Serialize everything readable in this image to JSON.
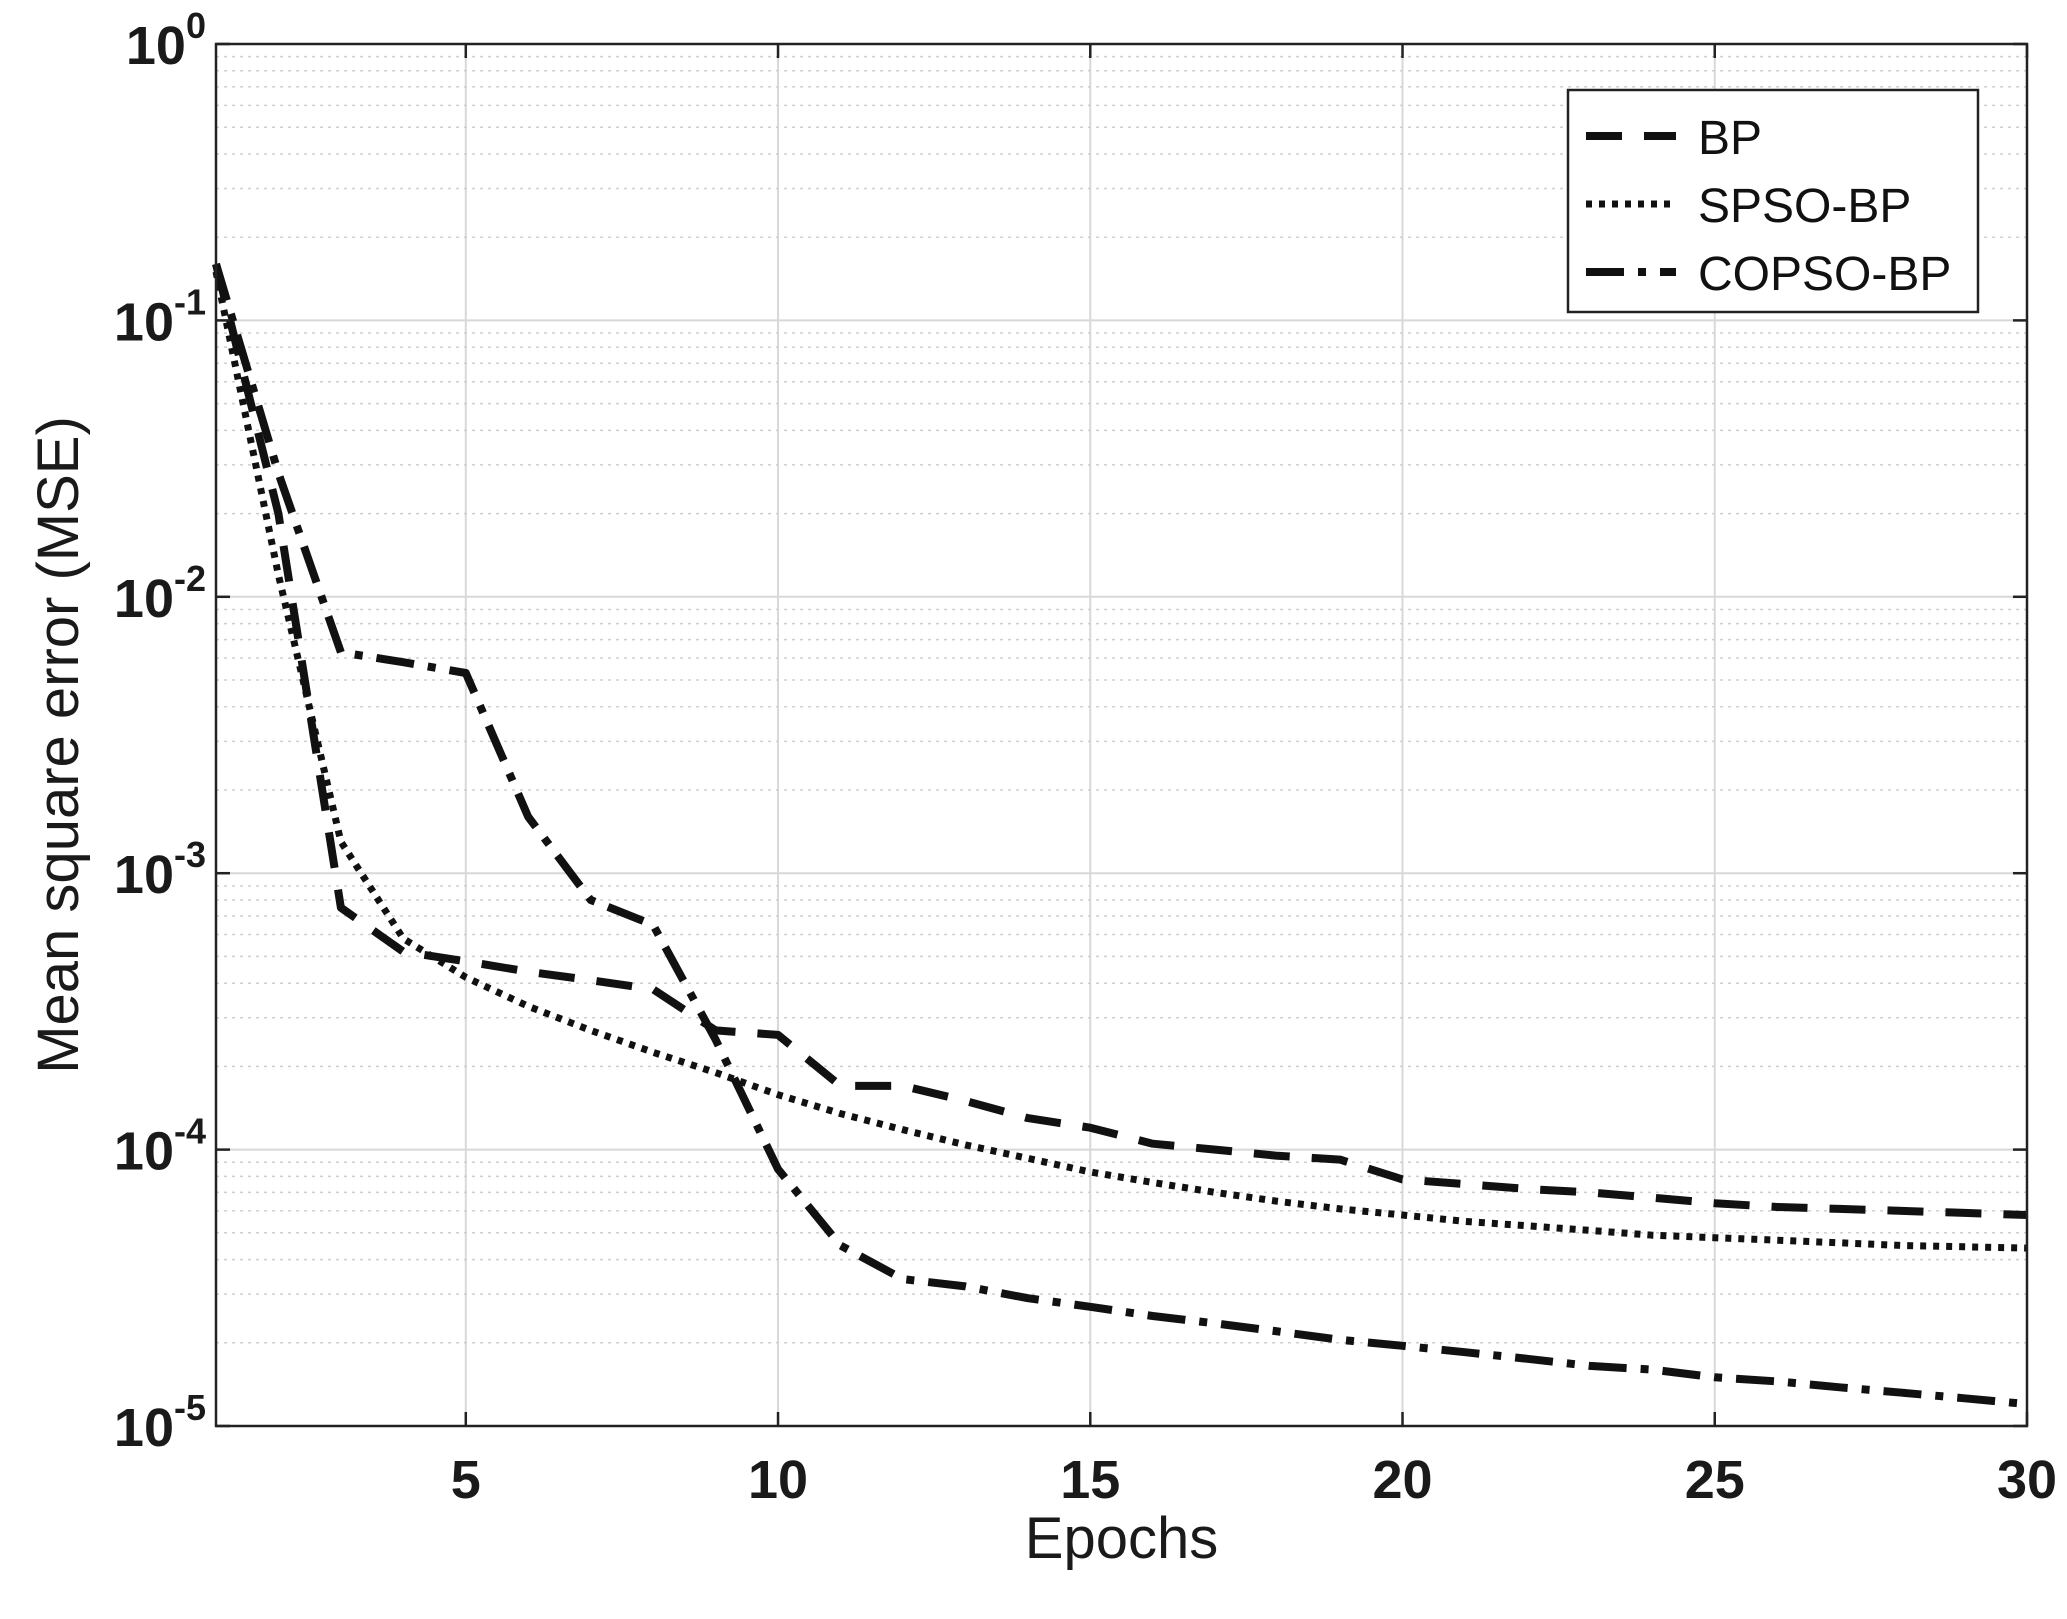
{
  "chart_data": {
    "type": "line",
    "title": "",
    "xlabel": "Epochs",
    "ylabel": "Mean square error (MSE)",
    "xscale": "linear",
    "yscale": "log",
    "xlim": [
      1,
      30
    ],
    "ylim": [
      1e-05,
      1
    ],
    "grid": true,
    "minor_grid": true,
    "legend_position": "top-right",
    "x_ticks": [
      5,
      10,
      15,
      20,
      25,
      30
    ],
    "x_tick_labels": [
      "5",
      "10",
      "15",
      "20",
      "25",
      "30"
    ],
    "y_ticks": [
      {
        "value": 1e-05,
        "base": "10",
        "exp": "-5"
      },
      {
        "value": 0.0001,
        "base": "10",
        "exp": "-4"
      },
      {
        "value": 0.001,
        "base": "10",
        "exp": "-3"
      },
      {
        "value": 0.01,
        "base": "10",
        "exp": "-2"
      },
      {
        "value": 0.1,
        "base": "10",
        "exp": "-1"
      },
      {
        "value": 1,
        "base": "10",
        "exp": "0"
      }
    ],
    "series": [
      {
        "name": "BP",
        "style": "dashed",
        "x": [
          1,
          2,
          3,
          4,
          5,
          6,
          7,
          8,
          9,
          10,
          11,
          12,
          13,
          14,
          15,
          16,
          17,
          18,
          19,
          20,
          21,
          22,
          23,
          24,
          25,
          26,
          27,
          28,
          29,
          30
        ],
        "y": [
          0.16,
          0.02,
          0.00075,
          0.00052,
          0.00048,
          0.00044,
          0.00041,
          0.00038,
          0.00027,
          0.00026,
          0.00017,
          0.00017,
          0.00015,
          0.00013,
          0.00012,
          0.000105,
          0.0001,
          9.5e-05,
          9.2e-05,
          7.8e-05,
          7.5e-05,
          7.2e-05,
          7e-05,
          6.7e-05,
          6.4e-05,
          6.2e-05,
          6.1e-05,
          6e-05,
          5.9e-05,
          5.8e-05
        ]
      },
      {
        "name": "SPSO-BP",
        "style": "dotted",
        "x": [
          1,
          2,
          3,
          4,
          5,
          6,
          7,
          8,
          9,
          10,
          11,
          12,
          13,
          14,
          15,
          16,
          17,
          18,
          19,
          20,
          21,
          22,
          23,
          24,
          25,
          26,
          27,
          28,
          29,
          30
        ],
        "y": [
          0.15,
          0.012,
          0.0013,
          0.00058,
          0.00042,
          0.00033,
          0.00027,
          0.000225,
          0.00019,
          0.000158,
          0.000135,
          0.000118,
          0.000104,
          9.3e-05,
          8.3e-05,
          7.6e-05,
          7e-05,
          6.5e-05,
          6.1e-05,
          5.8e-05,
          5.5e-05,
          5.3e-05,
          5.1e-05,
          4.9e-05,
          4.8e-05,
          4.7e-05,
          4.6e-05,
          4.5e-05,
          4.45e-05,
          4.4e-05
        ]
      },
      {
        "name": "COPSO-BP",
        "style": "dashdot",
        "x": [
          1,
          2,
          3,
          4,
          5,
          6,
          7,
          8,
          9,
          10,
          11,
          12,
          13,
          14,
          15,
          16,
          17,
          18,
          19,
          20,
          21,
          22,
          23,
          24,
          25,
          26,
          27,
          28,
          29,
          30
        ],
        "y": [
          0.16,
          0.028,
          0.0063,
          0.0058,
          0.0053,
          0.0016,
          0.0008,
          0.00065,
          0.00025,
          8.5e-05,
          4.5e-05,
          3.4e-05,
          3.2e-05,
          2.9e-05,
          2.7e-05,
          2.5e-05,
          2.35e-05,
          2.2e-05,
          2.05e-05,
          1.95e-05,
          1.85e-05,
          1.75e-05,
          1.65e-05,
          1.6e-05,
          1.5e-05,
          1.45e-05,
          1.38e-05,
          1.32e-05,
          1.26e-05,
          1.2e-05
        ]
      }
    ]
  }
}
